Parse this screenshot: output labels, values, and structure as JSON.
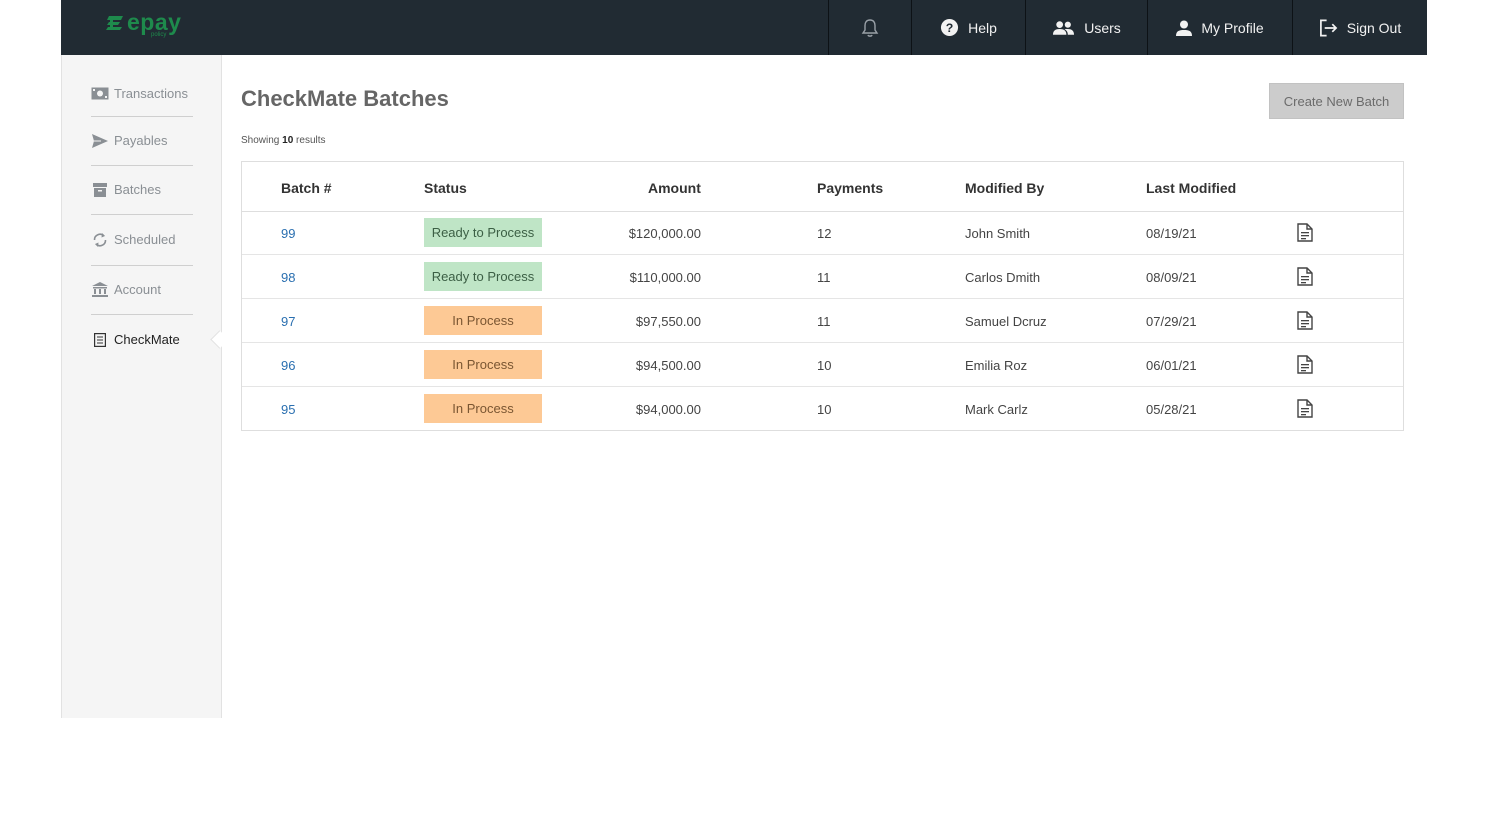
{
  "brand": {
    "logo_text": "epay",
    "logo_sub": "policy",
    "color": "#1e8a4c"
  },
  "topnav": {
    "items": [
      {
        "icon": "bell-icon",
        "label": ""
      },
      {
        "icon": "help-icon",
        "label": "Help"
      },
      {
        "icon": "users-icon",
        "label": "Users"
      },
      {
        "icon": "profile-icon",
        "label": "My Profile"
      },
      {
        "icon": "sign-out-icon",
        "label": "Sign Out"
      }
    ]
  },
  "sidebar": {
    "items": [
      {
        "icon": "cash-icon",
        "label": "Transactions"
      },
      {
        "icon": "send-icon",
        "label": "Payables"
      },
      {
        "icon": "archive-icon",
        "label": "Batches"
      },
      {
        "icon": "refresh-icon",
        "label": "Scheduled"
      },
      {
        "icon": "bank-icon",
        "label": "Account"
      },
      {
        "icon": "list-icon",
        "label": "CheckMate",
        "active": true
      }
    ]
  },
  "main": {
    "title": "CheckMate Batches",
    "create_button": "Create New Batch",
    "showing_prefix": "Showing",
    "showing_count": "10",
    "showing_suffix": "results"
  },
  "table": {
    "columns": [
      "Batch #",
      "Status",
      "Amount",
      "Payments",
      "Modified By",
      "Last Modified"
    ],
    "rows": [
      {
        "batch": "99",
        "status": "Ready to Process",
        "status_type": "ready",
        "amount": "$120,000.00",
        "payments": "12",
        "modified_by": "John Smith",
        "last_modified": "08/19/21"
      },
      {
        "batch": "98",
        "status": "Ready to Process",
        "status_type": "ready",
        "amount": "$110,000.00",
        "payments": "11",
        "modified_by": "Carlos Dmith",
        "last_modified": "08/09/21"
      },
      {
        "batch": "97",
        "status": "In Process",
        "status_type": "inproc",
        "amount": "$97,550.00",
        "payments": "11",
        "modified_by": "Samuel Dcruz",
        "last_modified": "07/29/21"
      },
      {
        "batch": "96",
        "status": "In Process",
        "status_type": "inproc",
        "amount": "$94,500.00",
        "payments": "10",
        "modified_by": "Emilia Roz",
        "last_modified": "06/01/21"
      },
      {
        "batch": "95",
        "status": "In Process",
        "status_type": "inproc",
        "amount": "$94,000.00",
        "payments": "10",
        "modified_by": "Mark Carlz",
        "last_modified": "05/28/21"
      }
    ]
  },
  "colors": {
    "topbar": "#212b33",
    "ready": "#bfe5c6",
    "in_process": "#fdc995",
    "link": "#2a6fb0"
  }
}
